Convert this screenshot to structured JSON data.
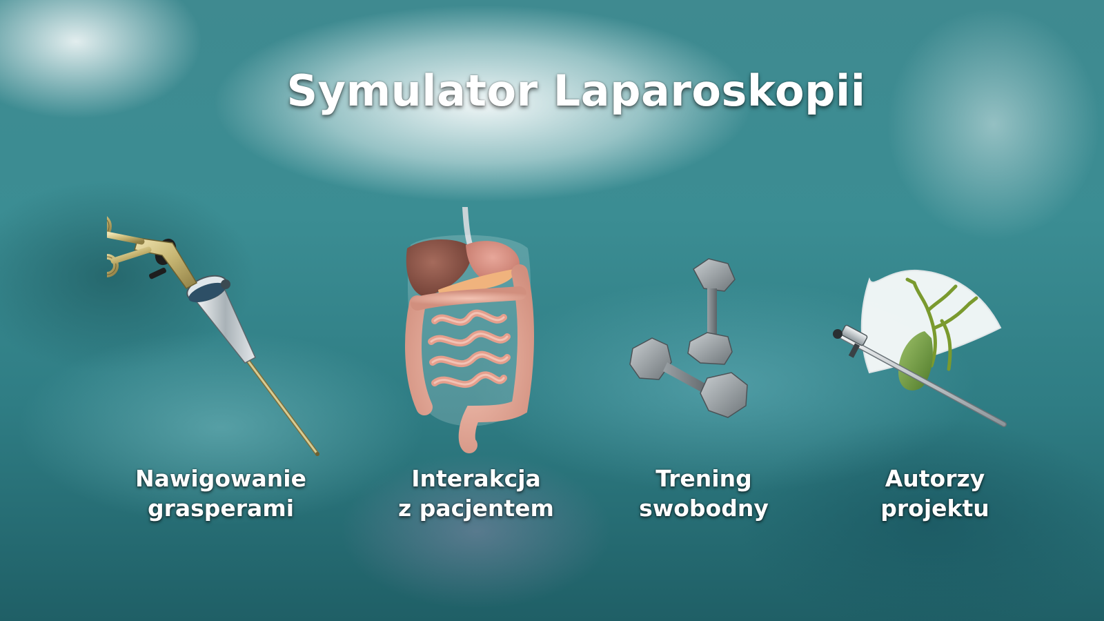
{
  "title": "Symulator Laparoskopii",
  "menu": [
    {
      "line1": "Nawigowanie",
      "line2": "grasperami",
      "icon": "grasper-instrument-icon"
    },
    {
      "line1": "Interakcja",
      "line2": "z pacjentem",
      "icon": "digestive-organs-icon"
    },
    {
      "line1": "Trening",
      "line2": "swobodny",
      "icon": "dumbbells-icon"
    },
    {
      "line1": "Autorzy",
      "line2": "projektu",
      "icon": "laparoscope-gallbladder-icon"
    }
  ]
}
